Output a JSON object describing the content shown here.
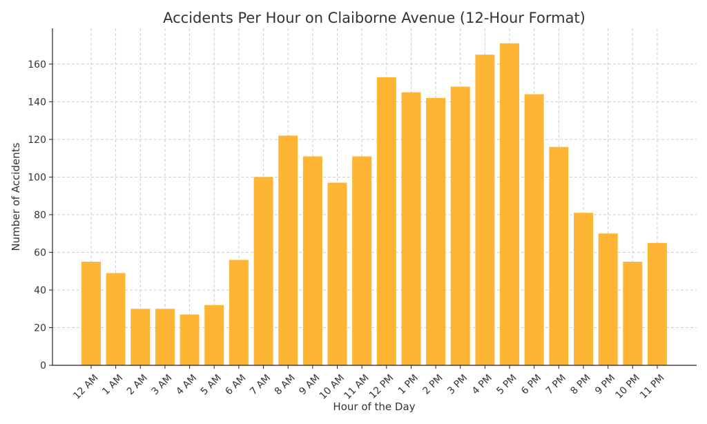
{
  "chart_data": {
    "type": "bar",
    "title": "Accidents Per Hour on Claiborne Avenue (12-Hour Format)",
    "xlabel": "Hour of the Day",
    "ylabel": "Number of Accidents",
    "categories": [
      "12 AM",
      "1 AM",
      "2 AM",
      "3 AM",
      "4 AM",
      "5 AM",
      "6 AM",
      "7 AM",
      "8 AM",
      "9 AM",
      "10 AM",
      "11 AM",
      "12 PM",
      "1 PM",
      "2 PM",
      "3 PM",
      "4 PM",
      "5 PM",
      "6 PM",
      "7 PM",
      "8 PM",
      "9 PM",
      "10 PM",
      "11 PM"
    ],
    "values": [
      55,
      49,
      30,
      30,
      27,
      32,
      56,
      100,
      122,
      111,
      97,
      111,
      153,
      145,
      142,
      148,
      165,
      171,
      144,
      116,
      81,
      70,
      55,
      65
    ],
    "ylim": [
      0,
      179
    ],
    "yticks": [
      0,
      20,
      40,
      60,
      80,
      100,
      120,
      140,
      160
    ],
    "grid": true,
    "bar_color": "#FFB534"
  }
}
